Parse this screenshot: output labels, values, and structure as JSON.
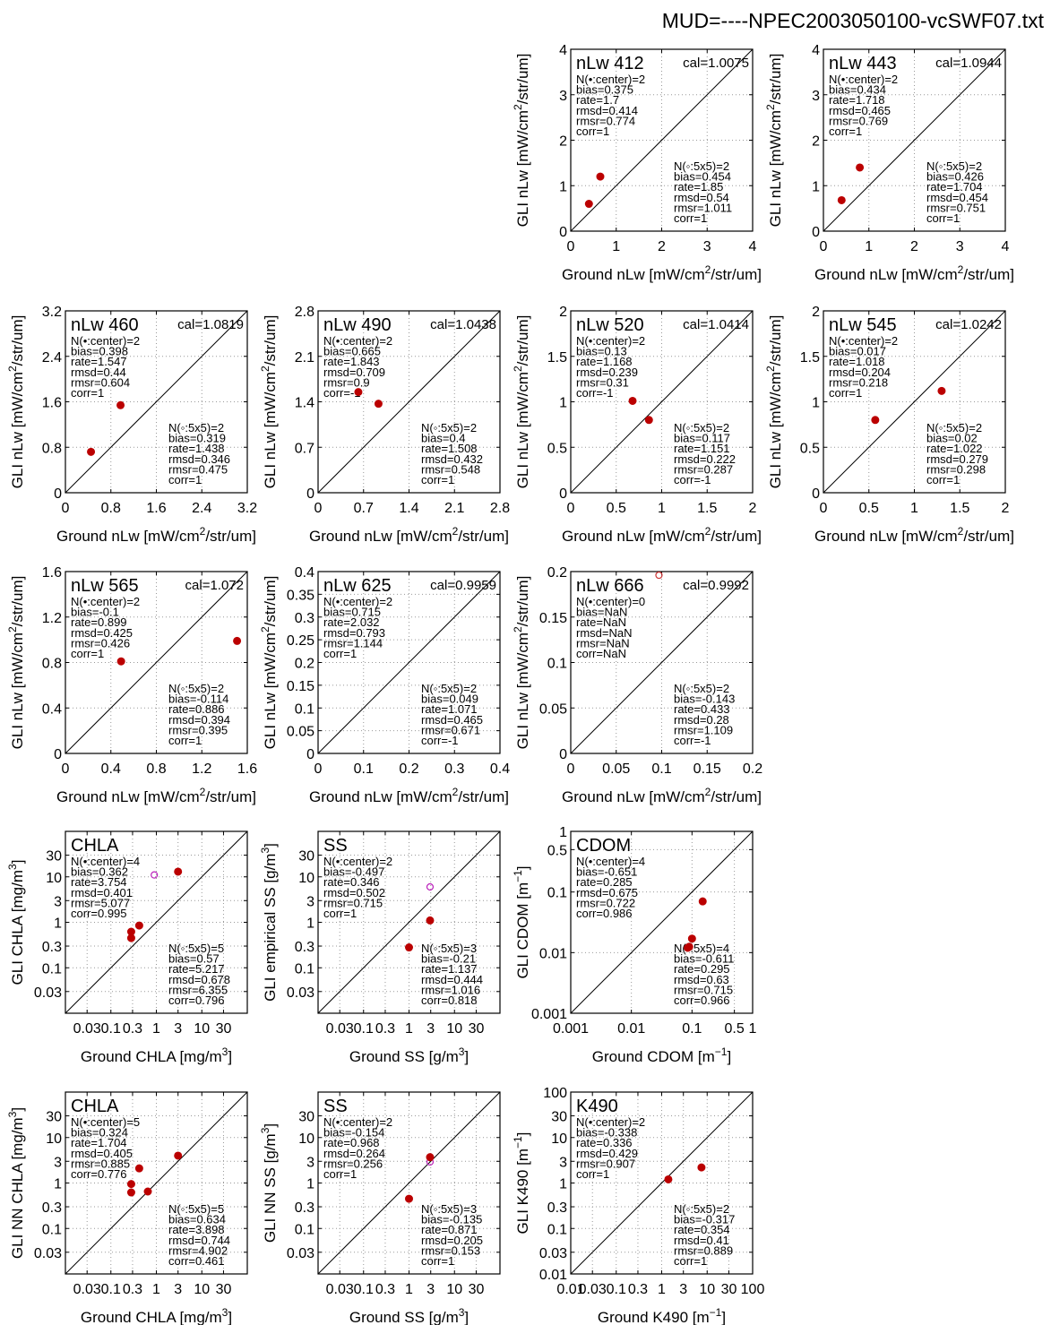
{
  "title": "MUD=----NPEC2003050100-vcSWF07.txt",
  "colors": {
    "filled_marker": "#bb0000",
    "open_marker_magenta": "#bb22bb",
    "open_marker_red": "#cc3333",
    "grid": "#999999"
  },
  "chart_data": [
    {
      "type": "scatter",
      "name": "nLw 412",
      "cal": "cal=1.0075",
      "scale": "linear",
      "xlabel": "Ground nLw [mW/cm2/str/um]",
      "ylabel": "GLI nLw [mW/cm2/str/um]",
      "xlim": [
        0,
        4
      ],
      "ylim": [
        0,
        4
      ],
      "xticks": [
        0,
        1,
        2,
        3,
        4
      ],
      "yticks": [
        0,
        1,
        2,
        3,
        4
      ],
      "xticklabels": [
        "0",
        "1",
        "2",
        "3",
        "4"
      ],
      "yticklabels": [
        "0",
        "1",
        "2",
        "3",
        "4"
      ],
      "filled": [
        [
          0.4,
          0.6
        ],
        [
          0.65,
          1.2
        ]
      ],
      "open": [],
      "stats_center": [
        "N(•:center)=2",
        "bias=0.375",
        "rate=1.7",
        "rmsd=0.414",
        "rmsr=0.774",
        "corr=1"
      ],
      "stats_box": [
        "N(◦:5x5)=2",
        "bias=0.454",
        "rate=1.85",
        "rmsd=0.54",
        "rmsr=1.011",
        "corr=1"
      ]
    },
    {
      "type": "scatter",
      "name": "nLw 443",
      "cal": "cal=1.0944",
      "scale": "linear",
      "xlabel": "Ground nLw [mW/cm2/str/um]",
      "ylabel": "GLI nLw [mW/cm2/str/um]",
      "xlim": [
        0,
        4
      ],
      "ylim": [
        0,
        4
      ],
      "xticks": [
        0,
        1,
        2,
        3,
        4
      ],
      "yticks": [
        0,
        1,
        2,
        3,
        4
      ],
      "xticklabels": [
        "0",
        "1",
        "2",
        "3",
        "4"
      ],
      "yticklabels": [
        "0",
        "1",
        "2",
        "3",
        "4"
      ],
      "filled": [
        [
          0.4,
          0.68
        ],
        [
          0.8,
          1.4
        ]
      ],
      "open": [],
      "stats_center": [
        "N(•:center)=2",
        "bias=0.434",
        "rate=1.718",
        "rmsd=0.465",
        "rmsr=0.769",
        "corr=1"
      ],
      "stats_box": [
        "N(◦:5x5)=2",
        "bias=0.426",
        "rate=1.704",
        "rmsd=0.454",
        "rmsr=0.751",
        "corr=1"
      ]
    },
    {
      "type": "scatter",
      "name": "nLw 460",
      "cal": "cal=1.0819",
      "scale": "linear",
      "xlabel": "Ground nLw [mW/cm2/str/um]",
      "ylabel": "GLI nLw [mW/cm2/str/um]",
      "xlim": [
        0,
        3.2
      ],
      "ylim": [
        0,
        3.2
      ],
      "xticks": [
        0,
        0.8,
        1.6,
        2.4,
        3.2
      ],
      "yticks": [
        0,
        0.8,
        1.6,
        2.4,
        3.2
      ],
      "xticklabels": [
        "0",
        "0.8",
        "1.6",
        "2.4",
        "3.2"
      ],
      "yticklabels": [
        "0",
        "0.8",
        "1.6",
        "2.4",
        "3.2"
      ],
      "filled": [
        [
          0.45,
          0.72
        ],
        [
          0.97,
          1.54
        ]
      ],
      "open": [],
      "stats_center": [
        "N(•:center)=2",
        "bias=0.398",
        "rate=1.547",
        "rmsd=0.44",
        "rmsr=0.604",
        "corr=1"
      ],
      "stats_box": [
        "N(◦:5x5)=2",
        "bias=0.319",
        "rate=1.438",
        "rmsd=0.346",
        "rmsr=0.475",
        "corr=1"
      ]
    },
    {
      "type": "scatter",
      "name": "nLw 490",
      "cal": "cal=1.0438",
      "scale": "linear",
      "xlabel": "Ground nLw [mW/cm2/str/um]",
      "ylabel": "GLI nLw [mW/cm2/str/um]",
      "xlim": [
        0,
        2.8
      ],
      "ylim": [
        0,
        2.8
      ],
      "xticks": [
        0,
        0.7,
        1.4,
        2.1,
        2.8
      ],
      "yticks": [
        0,
        0.7,
        1.4,
        2.1,
        2.8
      ],
      "xticklabels": [
        "0",
        "0.7",
        "1.4",
        "2.1",
        "2.8"
      ],
      "yticklabels": [
        "0",
        "0.7",
        "1.4",
        "2.1",
        "2.8"
      ],
      "filled": [
        [
          0.62,
          1.55
        ],
        [
          0.93,
          1.37
        ]
      ],
      "open": [],
      "stats_center": [
        "N(•:center)=2",
        "bias=0.665",
        "rate=1.843",
        "rmsd=0.709",
        "rmsr=0.9",
        "corr=-1"
      ],
      "stats_box": [
        "N(◦:5x5)=2",
        "bias=0.4",
        "rate=1.508",
        "rmsd=0.432",
        "rmsr=0.548",
        "corr=1"
      ]
    },
    {
      "type": "scatter",
      "name": "nLw 520",
      "cal": "cal=1.0414",
      "scale": "linear",
      "xlabel": "Ground nLw [mW/cm2/str/um]",
      "ylabel": "GLI nLw [mW/cm2/str/um]",
      "xlim": [
        0,
        2
      ],
      "ylim": [
        0,
        2
      ],
      "xticks": [
        0,
        0.5,
        1,
        1.5,
        2
      ],
      "yticks": [
        0,
        0.5,
        1,
        1.5,
        2
      ],
      "xticklabels": [
        "0",
        "0.5",
        "1",
        "1.5",
        "2"
      ],
      "yticklabels": [
        "0",
        "0.5",
        "1",
        "1.5",
        "2"
      ],
      "filled": [
        [
          0.68,
          1.01
        ],
        [
          0.86,
          0.8
        ]
      ],
      "open": [],
      "stats_center": [
        "N(•:center)=2",
        "bias=0.13",
        "rate=1.168",
        "rmsd=0.239",
        "rmsr=0.31",
        "corr=-1"
      ],
      "stats_box": [
        "N(◦:5x5)=2",
        "bias=0.117",
        "rate=1.151",
        "rmsd=0.222",
        "rmsr=0.287",
        "corr=-1"
      ]
    },
    {
      "type": "scatter",
      "name": "nLw 545",
      "cal": "cal=1.0242",
      "scale": "linear",
      "xlabel": "Ground nLw [mW/cm2/str/um]",
      "ylabel": "GLI nLw [mW/cm2/str/um]",
      "xlim": [
        0,
        2
      ],
      "ylim": [
        0,
        2
      ],
      "xticks": [
        0,
        0.5,
        1,
        1.5,
        2
      ],
      "yticks": [
        0,
        0.5,
        1,
        1.5,
        2
      ],
      "xticklabels": [
        "0",
        "0.5",
        "1",
        "1.5",
        "2"
      ],
      "yticklabels": [
        "0",
        "0.5",
        "1",
        "1.5",
        "2"
      ],
      "filled": [
        [
          0.57,
          0.8
        ],
        [
          1.3,
          1.12
        ]
      ],
      "open": [],
      "stats_center": [
        "N(•:center)=2",
        "bias=0.017",
        "rate=1.018",
        "rmsd=0.204",
        "rmsr=0.218",
        "corr=1"
      ],
      "stats_box": [
        "N(◦:5x5)=2",
        "bias=0.02",
        "rate=1.022",
        "rmsd=0.279",
        "rmsr=0.298",
        "corr=1"
      ]
    },
    {
      "type": "scatter",
      "name": "nLw 565",
      "cal": "cal=1.072",
      "scale": "linear",
      "xlabel": "Ground nLw [mW/cm2/str/um]",
      "ylabel": "GLI nLw [mW/cm2/str/um]",
      "xlim": [
        0,
        1.6
      ],
      "ylim": [
        0,
        1.6
      ],
      "xticks": [
        0,
        0.4,
        0.8,
        1.2,
        1.6
      ],
      "yticks": [
        0,
        0.4,
        0.8,
        1.2,
        1.6
      ],
      "xticklabels": [
        "0",
        "0.4",
        "0.8",
        "1.2",
        "1.6"
      ],
      "yticklabels": [
        "0",
        "0.4",
        "0.8",
        "1.2",
        "1.6"
      ],
      "filled": [
        [
          0.49,
          0.81
        ],
        [
          1.51,
          0.99
        ]
      ],
      "open": [],
      "stats_center": [
        "N(•:center)=2",
        "bias=-0.1",
        "rate=0.899",
        "rmsd=0.425",
        "rmsr=0.426",
        "corr=1"
      ],
      "stats_box": [
        "N(◦:5x5)=2",
        "bias=-0.114",
        "rate=0.886",
        "rmsd=0.394",
        "rmsr=0.395",
        "corr=1"
      ]
    },
    {
      "type": "scatter",
      "name": "nLw 625",
      "cal": "cal=0.9959",
      "scale": "linear",
      "xlabel": "Ground nLw [mW/cm2/str/um]",
      "ylabel": "GLI nLw [mW/cm2/str/um]",
      "xlim": [
        0,
        0.4
      ],
      "ylim": [
        0,
        0.4
      ],
      "xticks": [
        0,
        0.1,
        0.2,
        0.3,
        0.4
      ],
      "yticks": [
        0,
        0.05,
        0.1,
        0.15,
        0.2,
        0.25,
        0.3,
        0.35,
        0.4
      ],
      "xticklabels": [
        "0",
        "0.1",
        "0.2",
        "0.3",
        "0.4"
      ],
      "yticklabels": [
        "0",
        "0.05",
        "0.1",
        "0.15",
        "0.2",
        "0.25",
        "0.3",
        "0.35",
        "0.4"
      ],
      "filled": [],
      "open": [],
      "stats_center": [
        "N(•:center)=2",
        "bias=0.715",
        "rate=2.032",
        "rmsd=0.793",
        "rmsr=1.144",
        "corr=1"
      ],
      "stats_box": [
        "N(◦:5x5)=2",
        "bias=0.049",
        "rate=1.071",
        "rmsd=0.465",
        "rmsr=0.671",
        "corr=-1"
      ]
    },
    {
      "type": "scatter",
      "name": "nLw 666",
      "cal": "cal=0.9992",
      "scale": "linear",
      "xlabel": "Ground nLw [mW/cm2/str/um]",
      "ylabel": "GLI nLw [mW/cm2/str/um]",
      "xlim": [
        0,
        0.2
      ],
      "ylim": [
        0,
        0.2
      ],
      "xticks": [
        0,
        0.05,
        0.1,
        0.15,
        0.2
      ],
      "yticks": [
        0,
        0.05,
        0.1,
        0.15,
        0.2
      ],
      "xticklabels": [
        "0",
        "0.05",
        "0.1",
        "0.15",
        "0.2"
      ],
      "yticklabels": [
        "0",
        "0.05",
        "0.1",
        "0.15",
        "0.2"
      ],
      "filled": [],
      "open_red": [
        [
          0.097,
          0.196
        ]
      ],
      "open": [],
      "stats_center": [
        "N(•:center)=0",
        "bias=NaN",
        "rate=NaN",
        "rmsd=NaN",
        "rmsr=NaN",
        "corr=NaN"
      ],
      "stats_box": [
        "N(◦:5x5)=2",
        "bias=-0.143",
        "rate=0.433",
        "rmsd=0.28",
        "rmsr=1.109",
        "corr=-1"
      ]
    },
    {
      "type": "scatter",
      "name": "CHLA",
      "cal": "",
      "scale": "log",
      "xlabel": "Ground CHLA [mg/m3]",
      "ylabel": "GLI CHLA [mg/m3]",
      "xlim": [
        0.01,
        100
      ],
      "ylim": [
        0.01,
        100
      ],
      "xticks": [
        0.03,
        0.1,
        0.3,
        1,
        3,
        10,
        30
      ],
      "yticks": [
        0.03,
        0.1,
        0.3,
        1,
        3,
        10,
        30
      ],
      "xticklabels": [
        "0.03",
        "0.1",
        "0.3",
        "1",
        "3",
        "10",
        "30"
      ],
      "yticklabels": [
        "0.03",
        "0.1",
        "0.3",
        "1",
        "3",
        "10",
        "30"
      ],
      "filled": [
        [
          0.28,
          0.62
        ],
        [
          0.28,
          0.45
        ],
        [
          0.42,
          0.85
        ],
        [
          3.0,
          13.0
        ]
      ],
      "open": [
        [
          0.9,
          11.0
        ]
      ],
      "stats_center": [
        "N(•:center)=4",
        "bias=0.362",
        "rate=3.754",
        "rmsd=0.401",
        "rmsr=5.077",
        "corr=0.995"
      ],
      "stats_box": [
        "N(◦:5x5)=5",
        "bias=0.57",
        "rate=5.217",
        "rmsd=0.678",
        "rmsr=6.355",
        "corr=0.796"
      ]
    },
    {
      "type": "scatter",
      "name": "SS",
      "cal": "",
      "scale": "log",
      "xlabel": "Ground SS [g/m3]",
      "ylabel": "GLI empirical SS [g/m3]",
      "xlim": [
        0.01,
        100
      ],
      "ylim": [
        0.01,
        100
      ],
      "xticks": [
        0.03,
        0.1,
        0.3,
        1,
        3,
        10,
        30
      ],
      "yticks": [
        0.03,
        0.1,
        0.3,
        1,
        3,
        10,
        30
      ],
      "xticklabels": [
        "0.03",
        "0.1",
        "0.3",
        "1",
        "3",
        "10",
        "30"
      ],
      "yticklabels": [
        "0.03",
        "0.1",
        "0.3",
        "1",
        "3",
        "10",
        "30"
      ],
      "filled": [
        [
          1.0,
          0.28
        ],
        [
          2.9,
          1.1
        ]
      ],
      "open": [
        [
          2.9,
          6.0
        ]
      ],
      "stats_center": [
        "N(•:center)=2",
        "bias=-0.497",
        "rate=0.346",
        "rmsd=0.502",
        "rmsr=0.715",
        "corr=1"
      ],
      "stats_box": [
        "N(◦:5x5)=3",
        "bias=-0.21",
        "rate=1.137",
        "rmsd=0.444",
        "rmsr=1.016",
        "corr=0.818"
      ]
    },
    {
      "type": "scatter",
      "name": "CDOM",
      "cal": "",
      "scale": "log",
      "xlabel": "Ground CDOM [m-1]",
      "ylabel": "GLI CDOM [m-1]",
      "xlim": [
        0.001,
        1
      ],
      "ylim": [
        0.001,
        1
      ],
      "xticks": [
        0.001,
        0.01,
        0.1,
        0.5,
        1
      ],
      "yticks": [
        0.001,
        0.01,
        0.1,
        0.5,
        1
      ],
      "xticklabels": [
        "0.001",
        "0.01",
        "0.1",
        "0.5",
        "1"
      ],
      "yticklabels": [
        "0.001",
        "0.01",
        "0.1",
        "0.5",
        "1"
      ],
      "filled": [
        [
          0.085,
          0.012
        ],
        [
          0.09,
          0.0125
        ],
        [
          0.1,
          0.017
        ],
        [
          0.15,
          0.07
        ]
      ],
      "open": [],
      "stats_center": [
        "N(•:center)=4",
        "bias=-0.651",
        "rate=0.285",
        "rmsd=0.675",
        "rmsr=0.722",
        "corr=0.986"
      ],
      "stats_box": [
        "N(◦:5x5)=4",
        "bias=-0.611",
        "rate=0.295",
        "rmsd=0.63",
        "rmsr=0.715",
        "corr=0.966"
      ]
    },
    {
      "type": "scatter",
      "name": "CHLA",
      "cal": "",
      "scale": "log",
      "xlabel": "Ground CHLA [mg/m3]",
      "ylabel": "GLI NN CHLA [mg/m3]",
      "xlim": [
        0.01,
        100
      ],
      "ylim": [
        0.01,
        100
      ],
      "xticks": [
        0.03,
        0.1,
        0.3,
        1,
        3,
        10,
        30
      ],
      "yticks": [
        0.03,
        0.1,
        0.3,
        1,
        3,
        10,
        30
      ],
      "xticklabels": [
        "0.03",
        "0.1",
        "0.3",
        "1",
        "3",
        "10",
        "30"
      ],
      "yticklabels": [
        "0.03",
        "0.1",
        "0.3",
        "1",
        "3",
        "10",
        "30"
      ],
      "filled": [
        [
          0.28,
          0.95
        ],
        [
          0.28,
          0.62
        ],
        [
          0.42,
          2.1
        ],
        [
          3.0,
          4.0
        ],
        [
          0.65,
          0.65
        ]
      ],
      "open": [
        [
          0.65,
          0.65
        ]
      ],
      "stats_center": [
        "N(•:center)=5",
        "bias=0.324",
        "rate=1.704",
        "rmsd=0.405",
        "rmsr=0.885",
        "corr=0.776"
      ],
      "stats_box": [
        "N(◦:5x5)=5",
        "bias=0.634",
        "rate=3.898",
        "rmsd=0.744",
        "rmsr=4.902",
        "corr=0.461"
      ]
    },
    {
      "type": "scatter",
      "name": "SS",
      "cal": "",
      "scale": "log",
      "xlabel": "Ground SS [g/m3]",
      "ylabel": "GLI NN SS [g/m3]",
      "xlim": [
        0.01,
        100
      ],
      "ylim": [
        0.01,
        100
      ],
      "xticks": [
        0.03,
        0.1,
        0.3,
        1,
        3,
        10,
        30
      ],
      "yticks": [
        0.03,
        0.1,
        0.3,
        1,
        3,
        10,
        30
      ],
      "xticklabels": [
        "0.03",
        "0.1",
        "0.3",
        "1",
        "3",
        "10",
        "30"
      ],
      "yticklabels": [
        "0.03",
        "0.1",
        "0.3",
        "1",
        "3",
        "10",
        "30"
      ],
      "filled": [
        [
          1.0,
          0.45
        ],
        [
          2.9,
          3.7
        ]
      ],
      "open": [
        [
          2.9,
          2.9
        ]
      ],
      "stats_center": [
        "N(•:center)=2",
        "bias=-0.154",
        "rate=0.968",
        "rmsd=0.264",
        "rmsr=0.256",
        "corr=1"
      ],
      "stats_box": [
        "N(◦:5x5)=3",
        "bias=-0.135",
        "rate=0.871",
        "rmsd=0.205",
        "rmsr=0.153",
        "corr=1"
      ]
    },
    {
      "type": "scatter",
      "name": "K490",
      "cal": "",
      "scale": "log",
      "xlabel": "Ground K490 [m-1]",
      "ylabel": "GLI K490 [m-1]",
      "xlim": [
        0.01,
        100
      ],
      "ylim": [
        0.01,
        100
      ],
      "xticks": [
        0.01,
        0.03,
        0.1,
        0.3,
        1,
        3,
        10,
        30,
        100
      ],
      "yticks": [
        0.01,
        0.03,
        0.1,
        0.3,
        1,
        3,
        10,
        30,
        100
      ],
      "xticklabels": [
        "0.01",
        "0.03",
        "0.1",
        "0.3",
        "1",
        "3",
        "10",
        "30",
        "100"
      ],
      "yticklabels": [
        "0.01",
        "0.03",
        "0.1",
        "0.3",
        "1",
        "3",
        "10",
        "30",
        "100"
      ],
      "filled": [
        [
          1.4,
          1.2
        ],
        [
          7.5,
          2.2
        ]
      ],
      "open": [],
      "stats_center": [
        "N(•:center)=2",
        "bias=-0.338",
        "rate=0.336",
        "rmsd=0.429",
        "rmsr=0.907",
        "corr=1"
      ],
      "stats_box": [
        "N(◦:5x5)=2",
        "bias=-0.317",
        "rate=0.354",
        "rmsd=0.41",
        "rmsr=0.889",
        "corr=1"
      ]
    }
  ]
}
